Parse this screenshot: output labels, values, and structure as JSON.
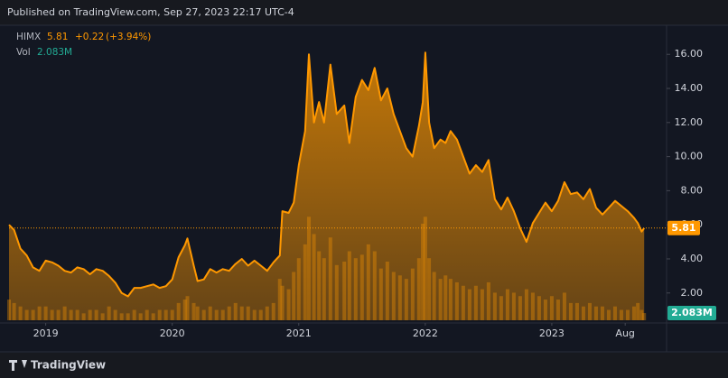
{
  "chart_data": {
    "type": "area",
    "published": "Published on TradingView.com, Sep 27, 2023 22:17 UTC-4",
    "symbol": "HIMX",
    "change": "+0.22",
    "change_pct": "(+3.94%)",
    "volume_name": "Vol",
    "brand": "TradingView",
    "last_price": {
      "value": 5.81,
      "label": "5.81"
    },
    "last_volume": {
      "value": 2.083,
      "label": "2.083M"
    },
    "x": [
      2018.71,
      2018.75,
      2018.8,
      2018.85,
      2018.9,
      2018.95,
      2019.0,
      2019.05,
      2019.1,
      2019.15,
      2019.2,
      2019.25,
      2019.3,
      2019.35,
      2019.4,
      2019.45,
      2019.5,
      2019.55,
      2019.6,
      2019.65,
      2019.7,
      2019.75,
      2019.8,
      2019.85,
      2019.9,
      2019.95,
      2020.0,
      2020.05,
      2020.1,
      2020.12,
      2020.17,
      2020.2,
      2020.25,
      2020.3,
      2020.35,
      2020.4,
      2020.45,
      2020.5,
      2020.55,
      2020.6,
      2020.65,
      2020.7,
      2020.75,
      2020.8,
      2020.85,
      2020.87,
      2020.92,
      2020.96,
      2021.0,
      2021.05,
      2021.08,
      2021.12,
      2021.16,
      2021.2,
      2021.25,
      2021.3,
      2021.36,
      2021.4,
      2021.45,
      2021.5,
      2021.55,
      2021.6,
      2021.65,
      2021.7,
      2021.75,
      2021.8,
      2021.85,
      2021.9,
      2021.95,
      2021.98,
      2022.0,
      2022.03,
      2022.07,
      2022.12,
      2022.16,
      2022.2,
      2022.25,
      2022.3,
      2022.35,
      2022.4,
      2022.45,
      2022.5,
      2022.55,
      2022.6,
      2022.65,
      2022.7,
      2022.75,
      2022.8,
      2022.85,
      2022.9,
      2022.95,
      2023.0,
      2023.05,
      2023.1,
      2023.15,
      2023.2,
      2023.25,
      2023.3,
      2023.35,
      2023.4,
      2023.45,
      2023.5,
      2023.55,
      2023.6,
      2023.65,
      2023.68,
      2023.71,
      2023.73
    ],
    "series": [
      {
        "name": "HIMX",
        "color": "#ff9800",
        "values": [
          6.0,
          5.7,
          4.6,
          4.2,
          3.5,
          3.3,
          3.9,
          3.8,
          3.6,
          3.3,
          3.2,
          3.5,
          3.4,
          3.1,
          3.4,
          3.3,
          3.0,
          2.6,
          2.0,
          1.8,
          2.3,
          2.3,
          2.4,
          2.5,
          2.3,
          2.4,
          2.8,
          4.1,
          4.8,
          5.2,
          3.6,
          2.7,
          2.8,
          3.4,
          3.2,
          3.4,
          3.3,
          3.7,
          4.0,
          3.6,
          3.9,
          3.6,
          3.3,
          3.8,
          4.2,
          6.8,
          6.7,
          7.3,
          9.5,
          11.5,
          16.0,
          12.0,
          13.2,
          12.0,
          15.4,
          12.5,
          13.0,
          10.8,
          13.5,
          14.5,
          13.9,
          15.2,
          13.3,
          14.0,
          12.5,
          11.5,
          10.5,
          10.0,
          11.8,
          13.2,
          16.1,
          12.0,
          10.5,
          11.0,
          10.8,
          11.5,
          11.0,
          10.0,
          9.0,
          9.5,
          9.1,
          9.8,
          7.5,
          6.9,
          7.6,
          6.8,
          5.8,
          5.0,
          6.1,
          6.7,
          7.3,
          6.8,
          7.4,
          8.5,
          7.8,
          7.9,
          7.5,
          8.1,
          7.0,
          6.6,
          7.0,
          7.4,
          7.1,
          6.8,
          6.4,
          6.1,
          5.6,
          5.81
        ]
      },
      {
        "name": "Vol",
        "color": "#ff9800",
        "axis": "y2",
        "values": [
          6,
          5,
          4,
          3,
          3,
          4,
          4,
          3,
          3,
          4,
          3,
          3,
          2,
          3,
          3,
          2,
          4,
          3,
          2,
          2,
          3,
          2,
          3,
          2,
          3,
          3,
          3,
          5,
          6,
          7,
          5,
          4,
          3,
          4,
          3,
          3,
          4,
          5,
          4,
          4,
          3,
          3,
          4,
          5,
          12,
          10,
          9,
          14,
          18,
          22,
          30,
          25,
          20,
          18,
          24,
          16,
          17,
          20,
          18,
          19,
          22,
          20,
          15,
          17,
          14,
          13,
          12,
          15,
          18,
          28,
          30,
          18,
          14,
          12,
          13,
          12,
          11,
          10,
          9,
          10,
          9,
          11,
          8,
          7,
          9,
          8,
          7,
          9,
          8,
          7,
          6,
          7,
          6,
          8,
          5,
          5,
          4,
          5,
          4,
          4,
          3,
          4,
          3,
          3,
          4,
          5,
          3,
          2.083
        ]
      }
    ],
    "xlim": [
      2018.71,
      2023.9
    ],
    "xticks": [
      {
        "value": 2019,
        "label": "2019"
      },
      {
        "value": 2020,
        "label": "2020"
      },
      {
        "value": 2021,
        "label": "2021"
      },
      {
        "value": 2022,
        "label": "2022"
      },
      {
        "value": 2023,
        "label": "2023"
      },
      {
        "value": 2023.58,
        "label": "Aug"
      }
    ],
    "ylim": [
      0.4,
      17.6
    ],
    "yticks": [
      {
        "value": 2,
        "label": "2.00"
      },
      {
        "value": 4,
        "label": "4.00"
      },
      {
        "value": 6,
        "label": "6.00"
      },
      {
        "value": 8,
        "label": "8.00"
      },
      {
        "value": 10,
        "label": "10.00"
      },
      {
        "value": 12,
        "label": "12.00"
      },
      {
        "value": 14,
        "label": "14.00"
      },
      {
        "value": 16,
        "label": "16.00"
      }
    ],
    "y2lim": [
      0,
      85
    ],
    "grid": false,
    "volume_label_color": "#22ab94"
  }
}
